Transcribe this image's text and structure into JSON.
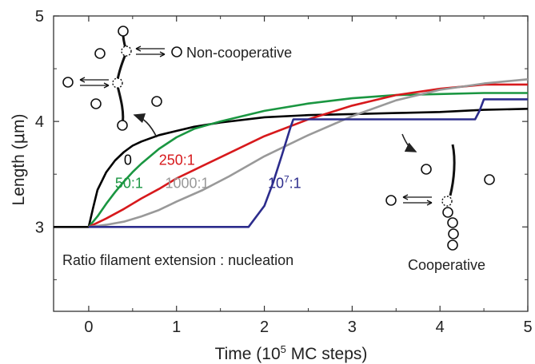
{
  "chart_data": {
    "type": "line",
    "xlabel": "Time (10",
    "xlabel_sup": "5",
    "xlabel_tail": " MC steps)",
    "ylabel": "Length (",
    "ylabel_mu": "μ",
    "ylabel_tail": "m)",
    "xlim": [
      -0.4,
      5
    ],
    "ylim": [
      2.2,
      5
    ],
    "xticks": [
      0,
      1,
      2,
      3,
      4,
      5
    ],
    "yticks": [
      3,
      4,
      5
    ],
    "grid": false,
    "series": [
      {
        "name": "0",
        "color": "#000000",
        "x": [
          -0.4,
          0.0,
          0.05,
          0.1,
          0.2,
          0.3,
          0.4,
          0.5,
          0.6,
          0.8,
          1.0,
          1.2,
          1.5,
          2.0,
          2.5,
          3.0,
          3.5,
          4.0,
          4.5,
          5.0
        ],
        "y": [
          3.0,
          3.0,
          3.18,
          3.35,
          3.52,
          3.63,
          3.71,
          3.77,
          3.81,
          3.87,
          3.91,
          3.95,
          3.99,
          4.04,
          4.06,
          4.07,
          4.08,
          4.09,
          4.11,
          4.12
        ]
      },
      {
        "name": "50:1",
        "color": "#1a9641",
        "x": [
          0.0,
          0.1,
          0.2,
          0.3,
          0.4,
          0.5,
          0.6,
          0.8,
          1.0,
          1.2,
          1.5,
          2.0,
          2.5,
          3.0,
          3.5,
          4.0,
          4.5,
          5.0
        ],
        "y": [
          3.0,
          3.1,
          3.22,
          3.33,
          3.43,
          3.52,
          3.6,
          3.74,
          3.85,
          3.93,
          4.0,
          4.1,
          4.17,
          4.22,
          4.25,
          4.26,
          4.27,
          4.27
        ]
      },
      {
        "name": "250:1",
        "color": "#d7191c",
        "x": [
          0.0,
          0.2,
          0.4,
          0.6,
          0.8,
          1.0,
          1.2,
          1.5,
          2.0,
          2.5,
          3.0,
          3.5,
          4.0,
          4.5,
          5.0
        ],
        "y": [
          3.0,
          3.08,
          3.17,
          3.27,
          3.36,
          3.46,
          3.54,
          3.66,
          3.86,
          4.02,
          4.15,
          4.25,
          4.31,
          4.35,
          4.35
        ]
      },
      {
        "name": "1000:1",
        "color": "#999999",
        "x": [
          0.0,
          0.2,
          0.4,
          0.6,
          0.8,
          1.0,
          1.3,
          1.6,
          2.0,
          2.5,
          3.0,
          3.5,
          4.0,
          4.5,
          5.0
        ],
        "y": [
          3.0,
          3.02,
          3.05,
          3.1,
          3.16,
          3.24,
          3.35,
          3.48,
          3.67,
          3.87,
          4.05,
          4.2,
          4.3,
          4.36,
          4.4
        ]
      },
      {
        "name": "10⁷:1",
        "color": "#2c2c8c",
        "x": [
          0.0,
          1.8,
          1.82,
          2.0,
          2.1,
          2.2,
          2.3,
          2.33,
          4.4,
          4.45,
          4.5,
          5.0
        ],
        "y": [
          3.0,
          3.0,
          3.0,
          3.2,
          3.42,
          3.68,
          3.95,
          4.02,
          4.02,
          4.1,
          4.21,
          4.21
        ]
      }
    ],
    "series_labels": [
      {
        "text": "0",
        "color": "#000000",
        "x": 0.4,
        "y": 3.59
      },
      {
        "text": "50:1",
        "color": "#1a9641",
        "x": 0.3,
        "y": 3.37
      },
      {
        "text": "250:1",
        "color": "#d7191c",
        "x": 0.8,
        "y": 3.59
      },
      {
        "text": "1000:1",
        "color": "#999999",
        "x": 0.87,
        "y": 3.37
      },
      {
        "text": "10",
        "sup": "7",
        "tail": ":1",
        "color": "#2c2c8c",
        "x": 2.04,
        "y": 3.37
      }
    ],
    "annotations": {
      "noncoop": "Non-cooperative",
      "coop": "Cooperative",
      "ratio": "Ratio filament extension : nucleation"
    }
  }
}
